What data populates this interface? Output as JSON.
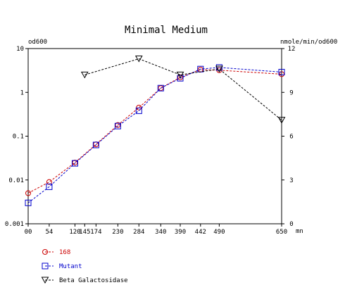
{
  "chart_data": {
    "type": "line",
    "title": "Minimal Medium",
    "ylabel": "od600",
    "y2label": "nmole/min/od600",
    "xunit": "mn",
    "x_ticks": [
      0,
      54,
      120,
      145,
      174,
      230,
      284,
      340,
      390,
      442,
      490,
      650
    ],
    "x_tick_labels": [
      "00",
      "54",
      "120",
      "145",
      "174",
      "230",
      "284",
      "340",
      "390",
      "442",
      "490",
      "650"
    ],
    "y_scale": "log",
    "ylim": [
      0.001,
      10
    ],
    "y_ticks": [
      0.001,
      0.01,
      0.1,
      1,
      10
    ],
    "y_tick_labels": [
      "0.001",
      "0.01",
      "0.1",
      "1",
      "10"
    ],
    "y2lim": [
      0,
      12
    ],
    "y2_ticks": [
      0,
      3,
      6,
      9,
      12
    ],
    "y2_tick_labels": [
      "0",
      "3",
      "6",
      "9",
      "12"
    ],
    "series": [
      {
        "name": "168",
        "axis": "left",
        "marker": "circle",
        "color": "#cc0000",
        "x": [
          0,
          54,
          120,
          174,
          230,
          284,
          340,
          390,
          442,
          490,
          650
        ],
        "values": [
          0.005,
          0.009,
          0.025,
          0.065,
          0.18,
          0.45,
          1.25,
          2.2,
          3.3,
          3.2,
          2.6
        ]
      },
      {
        "name": "Mutant",
        "axis": "left",
        "marker": "square",
        "color": "#0000cc",
        "x": [
          0,
          54,
          120,
          174,
          230,
          284,
          340,
          390,
          442,
          490,
          650
        ],
        "values": [
          0.003,
          0.007,
          0.024,
          0.063,
          0.17,
          0.38,
          1.25,
          2.1,
          3.4,
          3.7,
          2.9
        ]
      },
      {
        "name": "Beta Galactosidase",
        "axis": "right",
        "marker": "triangle-down",
        "color": "#000000",
        "x": [
          145,
          284,
          390,
          490,
          650
        ],
        "values": [
          10.2,
          11.3,
          10.2,
          10.6,
          7.1
        ]
      }
    ],
    "legend_position": "bottom-left",
    "grid": false
  }
}
